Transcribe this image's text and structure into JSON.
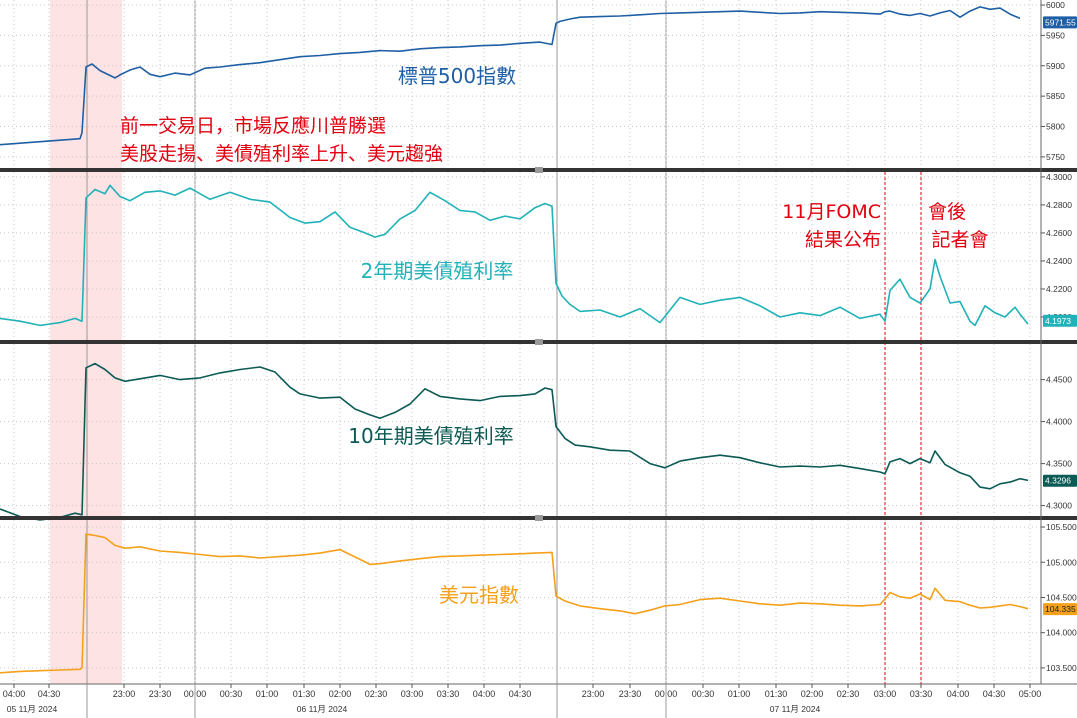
{
  "chart_data": [
    {
      "type": "line",
      "title": "標普500指數",
      "yticks": [
        "5750",
        "5800",
        "5850",
        "5900",
        "5950",
        "6000"
      ],
      "ylim": [
        5735,
        6005
      ],
      "last_value": "5971.55",
      "color": "#1f5fa6",
      "series": [
        {
          "x": [
            0,
            80,
            82,
            86,
            92,
            100,
            115,
            120,
            130,
            140,
            150,
            160,
            175,
            190,
            205,
            220,
            240,
            260,
            280,
            300,
            320,
            340,
            360,
            380,
            400,
            420,
            440,
            460,
            480,
            500,
            520,
            540,
            552,
            556,
            560,
            570,
            580,
            600,
            620,
            640,
            660,
            680,
            700,
            720,
            740,
            760,
            780,
            800,
            820,
            840,
            860,
            880,
            885,
            890,
            900,
            910,
            920,
            930,
            940,
            950,
            960,
            970,
            980,
            990,
            1000,
            1010,
            1020
          ],
          "values": [
            5770,
            5780,
            5790,
            5898,
            5903,
            5892,
            5880,
            5885,
            5893,
            5898,
            5886,
            5882,
            5888,
            5885,
            5896,
            5898,
            5902,
            5905,
            5910,
            5915,
            5917,
            5920,
            5922,
            5925,
            5924,
            5928,
            5930,
            5931,
            5933,
            5934,
            5937,
            5939,
            5935,
            5970,
            5973,
            5977,
            5980,
            5981,
            5982,
            5984,
            5986,
            5987,
            5988,
            5989,
            5990,
            5988,
            5986,
            5987,
            5989,
            5988,
            5987,
            5985,
            5989,
            5990,
            5985,
            5983,
            5986,
            5982,
            5987,
            5991,
            5980,
            5990,
            5997,
            5993,
            5995,
            5985,
            5978
          ]
        }
      ]
    },
    {
      "type": "line",
      "title": "2年期美債殖利率",
      "yticks": [
        "4.1973",
        "4.2000",
        "4.2200",
        "4.2400",
        "4.2600",
        "4.2800",
        "4.3000"
      ],
      "ylim": [
        4.185,
        4.3035
      ],
      "last_value": "4.1973",
      "color": "#20b2b8",
      "series": [
        {
          "x": [
            0,
            20,
            40,
            50,
            60,
            75,
            82,
            86,
            95,
            105,
            110,
            120,
            130,
            145,
            160,
            175,
            190,
            210,
            230,
            250,
            270,
            290,
            305,
            320,
            335,
            350,
            365,
            375,
            385,
            400,
            415,
            430,
            445,
            460,
            475,
            490,
            505,
            520,
            535,
            545,
            552,
            556,
            562,
            570,
            580,
            600,
            620,
            640,
            660,
            680,
            700,
            720,
            740,
            760,
            780,
            800,
            820,
            840,
            860,
            880,
            885,
            890,
            900,
            910,
            920,
            930,
            935,
            940,
            950,
            960,
            970,
            975,
            985,
            995,
            1005,
            1015,
            1020,
            1028
          ],
          "values": [
            4.199,
            4.197,
            4.194,
            4.195,
            4.196,
            4.199,
            4.197,
            4.285,
            4.291,
            4.288,
            4.294,
            4.286,
            4.283,
            4.289,
            4.29,
            4.287,
            4.292,
            4.284,
            4.289,
            4.284,
            4.282,
            4.271,
            4.267,
            4.268,
            4.275,
            4.264,
            4.26,
            4.257,
            4.259,
            4.27,
            4.276,
            4.289,
            4.283,
            4.276,
            4.275,
            4.269,
            4.272,
            4.27,
            4.278,
            4.281,
            4.279,
            4.224,
            4.215,
            4.209,
            4.204,
            4.205,
            4.2,
            4.206,
            4.196,
            4.214,
            4.209,
            4.212,
            4.214,
            4.208,
            4.2,
            4.203,
            4.201,
            4.207,
            4.199,
            4.202,
            4.197,
            4.219,
            4.227,
            4.214,
            4.21,
            4.22,
            4.241,
            4.229,
            4.21,
            4.211,
            4.197,
            4.194,
            4.208,
            4.203,
            4.2,
            4.207,
            4.202,
            4.195
          ]
        }
      ]
    },
    {
      "type": "line",
      "title": "10年期美債殖利率",
      "yticks": [
        "4.3000",
        "4.3296",
        "4.3500",
        "4.4000",
        "4.4500"
      ],
      "ylim": [
        4.29,
        4.49
      ],
      "last_value": "4.3296",
      "color": "#0c5a55",
      "series": [
        {
          "x": [
            0,
            20,
            40,
            60,
            75,
            82,
            86,
            95,
            105,
            115,
            125,
            140,
            160,
            180,
            200,
            220,
            240,
            260,
            275,
            290,
            300,
            320,
            340,
            355,
            370,
            380,
            395,
            410,
            425,
            440,
            460,
            480,
            500,
            520,
            535,
            545,
            552,
            556,
            565,
            575,
            590,
            610,
            630,
            650,
            665,
            680,
            700,
            720,
            740,
            760,
            780,
            800,
            820,
            840,
            860,
            880,
            885,
            890,
            900,
            910,
            920,
            930,
            935,
            945,
            960,
            970,
            980,
            990,
            1000,
            1010,
            1020,
            1028
          ],
          "values": [
            4.296,
            4.287,
            4.283,
            4.286,
            4.291,
            4.289,
            4.464,
            4.469,
            4.462,
            4.452,
            4.448,
            4.451,
            4.455,
            4.45,
            4.452,
            4.458,
            4.462,
            4.465,
            4.459,
            4.441,
            4.433,
            4.428,
            4.429,
            4.415,
            4.408,
            4.404,
            4.411,
            4.421,
            4.439,
            4.43,
            4.427,
            4.425,
            4.43,
            4.431,
            4.433,
            4.44,
            4.438,
            4.394,
            4.38,
            4.372,
            4.37,
            4.366,
            4.365,
            4.35,
            4.345,
            4.353,
            4.357,
            4.36,
            4.357,
            4.351,
            4.346,
            4.347,
            4.346,
            4.348,
            4.344,
            4.34,
            4.338,
            4.352,
            4.356,
            4.35,
            4.356,
            4.351,
            4.365,
            4.349,
            4.339,
            4.335,
            4.322,
            4.32,
            4.326,
            4.328,
            4.332,
            4.33
          ]
        }
      ]
    },
    {
      "type": "line",
      "title": "美元指數",
      "yticks": [
        "103.500",
        "104.000",
        "104.335",
        "104.500",
        "105.000",
        "105.500"
      ],
      "ylim": [
        103.3,
        105.6
      ],
      "last_value": "104.335",
      "color": "#f5a01a",
      "series": [
        {
          "x": [
            0,
            20,
            40,
            60,
            80,
            82,
            86,
            95,
            105,
            115,
            125,
            140,
            160,
            180,
            200,
            220,
            240,
            260,
            280,
            300,
            320,
            340,
            360,
            370,
            380,
            400,
            420,
            440,
            460,
            480,
            500,
            520,
            535,
            552,
            556,
            565,
            580,
            600,
            620,
            635,
            650,
            665,
            680,
            700,
            720,
            740,
            760,
            780,
            800,
            820,
            840,
            860,
            880,
            885,
            890,
            900,
            910,
            920,
            930,
            935,
            945,
            960,
            970,
            980,
            990,
            1000,
            1010,
            1020,
            1028
          ],
          "values": [
            103.43,
            103.45,
            103.46,
            103.47,
            103.48,
            103.5,
            105.4,
            105.38,
            105.35,
            105.24,
            105.2,
            105.22,
            105.16,
            105.14,
            105.11,
            105.08,
            105.09,
            105.06,
            105.08,
            105.1,
            105.13,
            105.18,
            105.04,
            104.97,
            104.98,
            105.02,
            105.05,
            105.08,
            105.09,
            105.1,
            105.11,
            105.12,
            105.13,
            105.14,
            104.52,
            104.45,
            104.38,
            104.34,
            104.31,
            104.27,
            104.32,
            104.38,
            104.4,
            104.47,
            104.49,
            104.45,
            104.41,
            104.39,
            104.42,
            104.41,
            104.39,
            104.38,
            104.4,
            104.48,
            104.57,
            104.51,
            104.49,
            104.55,
            104.47,
            104.63,
            104.46,
            104.44,
            104.39,
            104.35,
            104.36,
            104.38,
            104.4,
            104.37,
            104.34
          ]
        }
      ]
    }
  ],
  "x_axis": {
    "ticks": [
      {
        "label": "04:00",
        "pos": 14
      },
      {
        "label": "04:30",
        "pos": 49
      },
      {
        "label": "23:00",
        "pos": 124
      },
      {
        "label": "23:30",
        "pos": 160
      },
      {
        "label": "00:00",
        "pos": 195
      },
      {
        "label": "00:30",
        "pos": 231
      },
      {
        "label": "01:00",
        "pos": 267
      },
      {
        "label": "01:30",
        "pos": 304
      },
      {
        "label": "02:00",
        "pos": 340
      },
      {
        "label": "02:30",
        "pos": 376
      },
      {
        "label": "03:00",
        "pos": 412
      },
      {
        "label": "03:30",
        "pos": 448
      },
      {
        "label": "04:00",
        "pos": 484
      },
      {
        "label": "04:30",
        "pos": 520
      },
      {
        "label": "23:00",
        "pos": 593
      },
      {
        "label": "23:30",
        "pos": 630
      },
      {
        "label": "00:00",
        "pos": 666
      },
      {
        "label": "00:30",
        "pos": 703
      },
      {
        "label": "01:00",
        "pos": 739
      },
      {
        "label": "01:30",
        "pos": 776
      },
      {
        "label": "02:00",
        "pos": 812
      },
      {
        "label": "02:30",
        "pos": 848
      },
      {
        "label": "03:00",
        "pos": 885
      },
      {
        "label": "03:30",
        "pos": 921
      },
      {
        "label": "04:00",
        "pos": 958
      },
      {
        "label": "04:30",
        "pos": 994
      },
      {
        "label": "05:00",
        "pos": 1030
      }
    ],
    "dates": [
      {
        "label": "05 11月 2024",
        "pos": 32
      },
      {
        "label": "06 11月 2024",
        "pos": 322
      },
      {
        "label": "07 11月 2024",
        "pos": 795
      }
    ],
    "session_breaks": [
      87,
      195,
      557,
      666
    ]
  },
  "annotations": {
    "election_line1": "前一交易日，市場反應川普勝選",
    "election_line2": "美股走揚、美債殖利率上升、美元趨強",
    "fomc_line1": "11月FOMC",
    "fomc_line2": "結果公布",
    "presser_line1": "會後",
    "presser_line2": "記者會"
  },
  "highlight": {
    "color": "#fde3e3",
    "edge_color": "#f28b8b"
  },
  "event_line_color": "#e3000f"
}
